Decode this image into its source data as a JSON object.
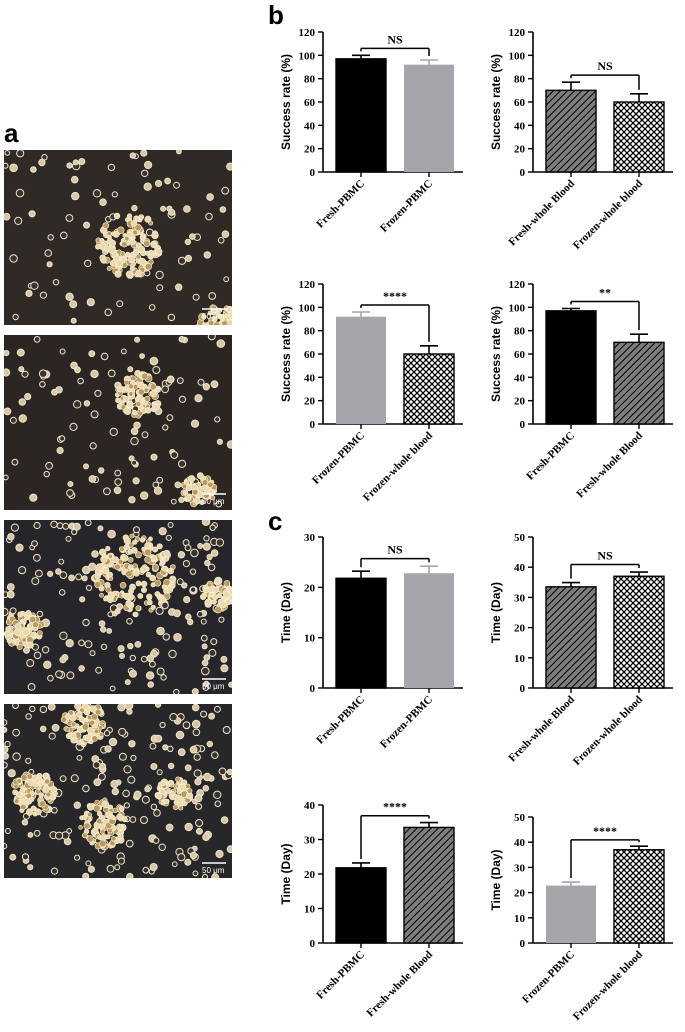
{
  "panels": {
    "a": "a",
    "b": "b",
    "c": "c"
  },
  "micrographs": [
    {
      "scale": "50 μm"
    },
    {
      "scale": "50 μm"
    },
    {
      "scale": "50 μm"
    },
    {
      "scale": "50 μm"
    }
  ],
  "colors": {
    "fresh_pbmc": "#000000",
    "frozen_pbmc": "#a6a6aa",
    "fresh_whole_blood": "#7d7d7d",
    "frozen_whole_blood": "#ffffff"
  },
  "chart_data": [
    {
      "type": "bar",
      "ylabel": "Success rate (%)",
      "ylim": [
        0,
        120
      ],
      "yticks": [
        0,
        20,
        40,
        60,
        80,
        100,
        120
      ],
      "categories": [
        "Fresh-PBMC",
        "Frozen-PBMC"
      ],
      "values": [
        97,
        92
      ],
      "errors": [
        3,
        4
      ],
      "annotation": "NS"
    },
    {
      "type": "bar",
      "ylabel": "Success rate (%)",
      "ylim": [
        0,
        120
      ],
      "yticks": [
        0,
        20,
        40,
        60,
        80,
        100,
        120
      ],
      "categories": [
        "Fresh-whole Blood",
        "Frozen-whole blood"
      ],
      "values": [
        70,
        60
      ],
      "errors": [
        7,
        7
      ],
      "annotation": "NS"
    },
    {
      "type": "bar",
      "ylabel": "Success rate (%)",
      "ylim": [
        0,
        120
      ],
      "yticks": [
        0,
        20,
        40,
        60,
        80,
        100,
        120
      ],
      "categories": [
        "Frozen-PBMC",
        "Frozen-whole blood"
      ],
      "values": [
        92,
        60
      ],
      "errors": [
        4,
        7
      ],
      "annotation": "****"
    },
    {
      "type": "bar",
      "ylabel": "Success rate (%)",
      "ylim": [
        0,
        120
      ],
      "yticks": [
        0,
        20,
        40,
        60,
        80,
        100,
        120
      ],
      "categories": [
        "Fresh-PBMC",
        "Fresh-whole Blood"
      ],
      "values": [
        97,
        70
      ],
      "errors": [
        2,
        7
      ],
      "annotation": "**"
    },
    {
      "type": "bar",
      "ylabel": "Time (Day)",
      "ylim": [
        0,
        30
      ],
      "yticks": [
        0,
        10,
        20,
        30
      ],
      "categories": [
        "Fresh-PBMC",
        "Frozen-PBMC"
      ],
      "values": [
        21.8,
        22.8
      ],
      "errors": [
        1.4,
        1.4
      ],
      "annotation": "NS"
    },
    {
      "type": "bar",
      "ylabel": "Time (Day)",
      "ylim": [
        0,
        50
      ],
      "yticks": [
        0,
        10,
        20,
        30,
        40,
        50
      ],
      "categories": [
        "Fresh-whole Blood",
        "Frozen-whole blood"
      ],
      "values": [
        33.5,
        37
      ],
      "errors": [
        1.4,
        1.4
      ],
      "annotation": "NS"
    },
    {
      "type": "bar",
      "ylabel": "Time (Day)",
      "ylim": [
        0,
        40
      ],
      "yticks": [
        0,
        10,
        20,
        30,
        40
      ],
      "categories": [
        "Fresh-PBMC",
        "Fresh-whole Blood"
      ],
      "values": [
        21.8,
        33.5
      ],
      "errors": [
        1.4,
        1.4
      ],
      "annotation": "****"
    },
    {
      "type": "bar",
      "ylabel": "Time (Day)",
      "ylim": [
        0,
        50
      ],
      "yticks": [
        0,
        10,
        20,
        30,
        40,
        50
      ],
      "categories": [
        "Frozen-PBMC",
        "Frozen-whole blood"
      ],
      "values": [
        22.8,
        37
      ],
      "errors": [
        1.4,
        1.4
      ],
      "annotation": "****"
    }
  ]
}
